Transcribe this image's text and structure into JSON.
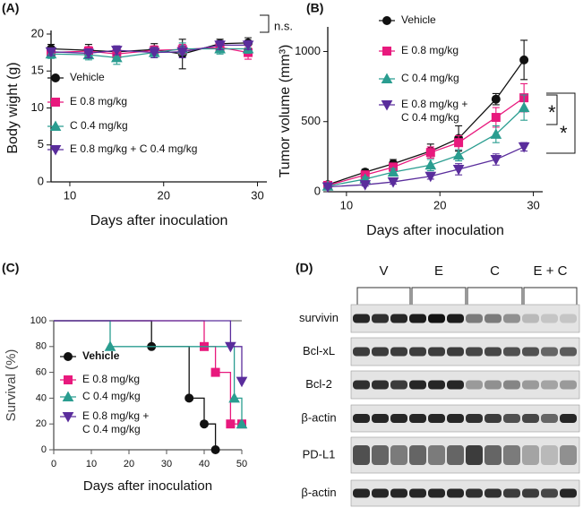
{
  "chart_data": [
    {
      "type": "line",
      "panel": "(A)",
      "xlabel": "Days after inoculation",
      "ylabel": "Body wight (g)",
      "xlim": [
        8,
        31
      ],
      "ylim": [
        0,
        20
      ],
      "xticks": [
        10,
        20,
        30
      ],
      "yticks": [
        0,
        5,
        10,
        15,
        20
      ],
      "x": [
        8,
        12,
        15,
        19,
        22,
        26,
        29
      ],
      "annotations": [
        "n.s."
      ],
      "series": [
        {
          "name": "Vehicle",
          "color": "#111111",
          "marker": "circle",
          "values": [
            18,
            17.8,
            17.6,
            17.9,
            17.3,
            18.7,
            18.8
          ],
          "errors": [
            0.6,
            0.8,
            0.7,
            0.8,
            2,
            0.6,
            0.7
          ]
        },
        {
          "name": "E 0.8 mg/kg",
          "color": "#e8197d",
          "marker": "square",
          "values": [
            17.5,
            17.7,
            17.3,
            17.8,
            17.9,
            18.2,
            17.5
          ],
          "errors": [
            0.5,
            0.6,
            0.8,
            0.6,
            0.7,
            0.6,
            0.9
          ]
        },
        {
          "name": "C 0.4 mg/kg",
          "color": "#2a9d90",
          "marker": "triangle",
          "values": [
            17.3,
            17.2,
            16.8,
            17.5,
            18,
            18,
            18
          ],
          "errors": [
            0.6,
            0.7,
            0.9,
            0.7,
            0.8,
            0.7,
            0.6
          ]
        },
        {
          "name": "E 0.8 mg/kg + C 0.4 mg/kg",
          "color": "#5a2d9c",
          "marker": "triangle-down",
          "values": [
            17.6,
            17.4,
            17.8,
            17.5,
            17.6,
            18.5,
            18.5
          ],
          "errors": [
            0.5,
            0.6,
            0.6,
            0.7,
            0.8,
            0.6,
            0.6
          ]
        }
      ]
    },
    {
      "type": "line",
      "panel": "(B)",
      "xlabel": "Days after inoculation",
      "ylabel": "Tumor volume (mm³)",
      "xlim": [
        8,
        31
      ],
      "ylim": [
        0,
        1150
      ],
      "xticks": [
        10,
        20,
        30
      ],
      "yticks": [
        0,
        500,
        1000
      ],
      "x": [
        8,
        12,
        15,
        19,
        22,
        26,
        29
      ],
      "annotations": [
        "*",
        "*"
      ],
      "series": [
        {
          "name": "Vehicle",
          "color": "#111111",
          "marker": "circle",
          "values": [
            50,
            140,
            200,
            290,
            380,
            660,
            940
          ],
          "errors": [
            20,
            20,
            30,
            50,
            90,
            40,
            140
          ]
        },
        {
          "name": "E 0.8 mg/kg",
          "color": "#e8197d",
          "marker": "square",
          "values": [
            45,
            120,
            175,
            280,
            350,
            530,
            670
          ],
          "errors": [
            15,
            20,
            30,
            40,
            50,
            70,
            100
          ]
        },
        {
          "name": "C 0.4 mg/kg",
          "color": "#2a9d90",
          "marker": "triangle",
          "values": [
            40,
            90,
            140,
            190,
            260,
            410,
            600
          ],
          "errors": [
            15,
            15,
            25,
            40,
            40,
            60,
            90
          ]
        },
        {
          "name": "E 0.8 mg/kg +\nC 0.4 mg/kg",
          "color": "#5a2d9c",
          "marker": "triangle-down",
          "values": [
            35,
            50,
            70,
            110,
            160,
            230,
            320
          ],
          "errors": [
            10,
            10,
            15,
            20,
            40,
            40,
            30
          ]
        }
      ]
    },
    {
      "type": "step",
      "panel": "(C)",
      "xlabel": "Days after inoculation",
      "ylabel": "Survival (%)",
      "xlim": [
        0,
        50
      ],
      "ylim": [
        0,
        100
      ],
      "xticks": [
        0,
        10,
        20,
        30,
        40,
        50
      ],
      "yticks": [
        0,
        20,
        40,
        60,
        80,
        100
      ],
      "series": [
        {
          "name": "Vehicle",
          "color": "#111111",
          "marker": "circle",
          "x": [
            0,
            26,
            36,
            40,
            43
          ],
          "values": [
            100,
            80,
            40,
            20,
            0
          ]
        },
        {
          "name": "E 0.8 mg/kg",
          "color": "#e8197d",
          "marker": "square",
          "x": [
            0,
            40,
            43,
            47,
            50
          ],
          "values": [
            100,
            80,
            60,
            20,
            20
          ]
        },
        {
          "name": "C 0.4 mg/kg",
          "color": "#2a9d90",
          "marker": "triangle",
          "x": [
            0,
            15,
            48,
            50
          ],
          "values": [
            100,
            80,
            40,
            20
          ]
        },
        {
          "name": "E 0.8 mg/kg +\nC 0.4 mg/kg",
          "color": "#5a2d9c",
          "marker": "triangle-down",
          "x": [
            0,
            47,
            50
          ],
          "values": [
            100,
            80,
            53
          ]
        }
      ]
    }
  ],
  "blot": {
    "panel": "(D)",
    "groups": [
      "V",
      "E",
      "C",
      "E + C"
    ],
    "rows": [
      "survivin",
      "Bcl-xL",
      "Bcl-2",
      "β-actin",
      "PD-L1",
      "β-actin"
    ]
  }
}
